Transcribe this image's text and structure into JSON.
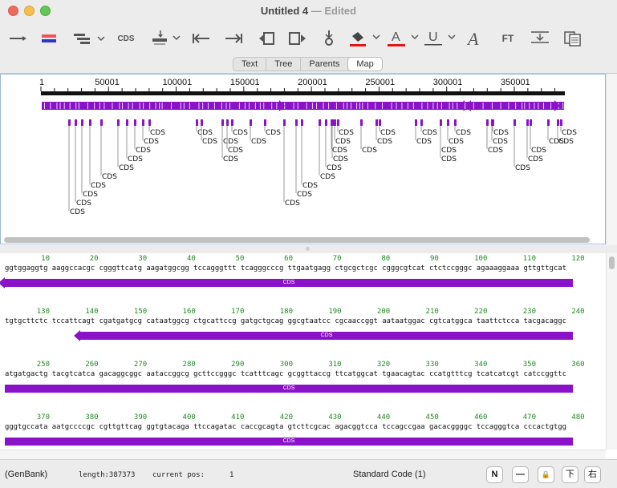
{
  "window": {
    "title": "Untitled 4",
    "edited": "— Edited"
  },
  "tabs": [
    "Text",
    "Tree",
    "Parents",
    "Map"
  ],
  "selected_tab": "Map",
  "ruler": {
    "labels": [
      "1",
      "50001",
      "100001",
      "150001",
      "200001",
      "250001",
      "300001",
      "350001"
    ]
  },
  "feature_label": "CDS",
  "sequence": {
    "blocks": [
      {
        "nums": [
          "10",
          "20",
          "30",
          "40",
          "50",
          "60",
          "70",
          "80",
          "90",
          "100",
          "110",
          "120"
        ],
        "bases": "ggtggaggtg aaggccacgc cgggttcatg aagatggcgg tccagggttt tcagggcccg ttgaatgagg ctgcgctcgc cgggcgtcat ctctccgggc agaaaggaaa gttgttgcat",
        "feature": "CDS"
      },
      {
        "nums": [
          "130",
          "140",
          "150",
          "160",
          "170",
          "180",
          "190",
          "200",
          "210",
          "220",
          "230",
          "240"
        ],
        "bases": "tgtgcttctc tccattcagt cgatgatgcg cataatggcg ctgcattccg gatgctgcag ggcgtaatcc cgcaaccggt aataatggac cgtcatggca taattctcca tacgacaggc",
        "feature": "CDS"
      },
      {
        "nums": [
          "250",
          "260",
          "270",
          "280",
          "290",
          "300",
          "310",
          "320",
          "330",
          "340",
          "350",
          "360"
        ],
        "bases": "atgatgactg tacgtcatca gacaggcggc aataccggcg gcttccgggc tcatttcagc gcggttaccg ttcatggcat tgaacagtac ccatgtttcg tcatcatcgt catccggttc",
        "feature": "CDS"
      },
      {
        "nums": [
          "370",
          "380",
          "390",
          "400",
          "410",
          "420",
          "430",
          "440",
          "450",
          "460",
          "470",
          "480"
        ],
        "bases": "gggtgccata aatgccccgc cgttgttcag ggtgtacaga ttccagatac caccgcagta gtcttcgcac agacggtcca tccagccgaa gacacggggc tccagggtca cccactgtgg",
        "feature": "CDS"
      }
    ]
  },
  "status": {
    "format": "(GenBank)",
    "length_label": "length:387373",
    "pos_label": "current pos:",
    "pos_value": "1",
    "code": "Standard Code (1)",
    "buttons": [
      "N",
      "—",
      "🔒",
      "下",
      "右"
    ]
  },
  "colors": {
    "feature": "#8a12c8",
    "numbers": "#208a20"
  },
  "icons": [
    "line-icon",
    "strand-color-icon",
    "layers-icon",
    "cds-icon",
    "insert-icon",
    "go-start-icon",
    "go-end-icon",
    "prev-icon",
    "next-icon",
    "anchor-icon",
    "paint-icon",
    "text-color-icon",
    "underline-icon",
    "font-icon",
    "ft-icon",
    "align-icon",
    "copy-icon"
  ]
}
